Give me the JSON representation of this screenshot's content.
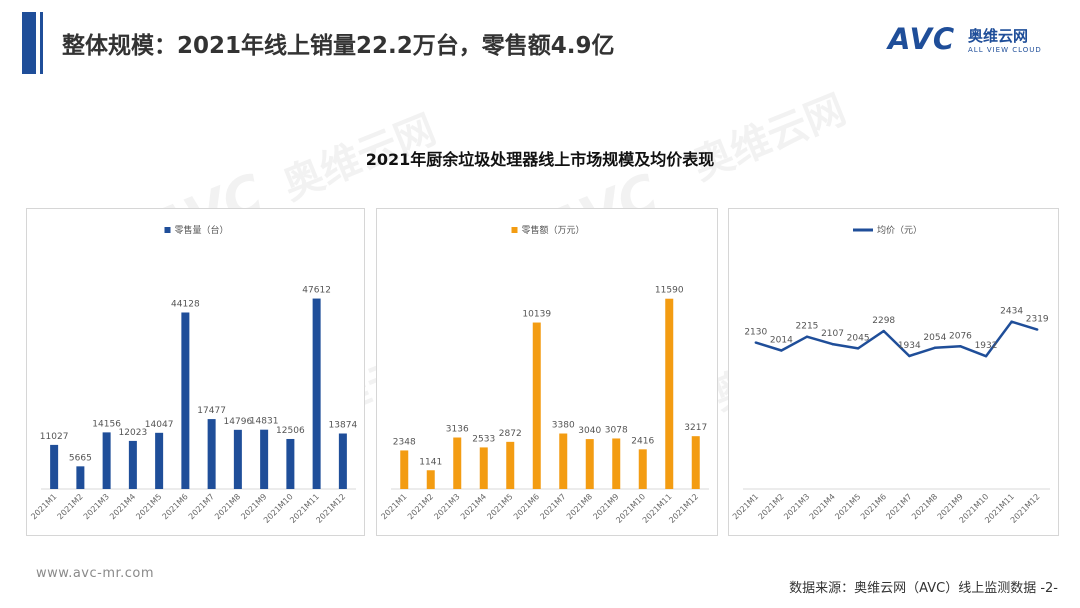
{
  "header": {
    "title": "整体规模：2021年线上销量22.2万台，零售额4.9亿"
  },
  "logo": {
    "mark": "AVC",
    "cn": "奥维云网",
    "en": "ALL VIEW CLOUD"
  },
  "section_title": "2021年厨余垃圾处理器线上市场规模及均价表现",
  "footer": {
    "url": "www.avc-mr.com",
    "source": "数据来源：奥维云网（AVC）线上监测数据 -2-"
  },
  "colors": {
    "brand_blue": "#1f4e99",
    "volume_bar": "#1f4e99",
    "revenue_bar": "#f39c12",
    "price_line": "#1f4e99"
  },
  "chart_data": [
    {
      "type": "bar",
      "title": "",
      "categories": [
        "2021M1",
        "2021M2",
        "2021M3",
        "2021M4",
        "2021M5",
        "2021M6",
        "2021M7",
        "2021M8",
        "2021M9",
        "2021M10",
        "2021M11",
        "2021M12"
      ],
      "series": [
        {
          "name": "零售量（台）",
          "values": [
            11027,
            5665,
            14156,
            12023,
            14047,
            44128,
            17477,
            14796,
            14831,
            12506,
            47612,
            13874
          ]
        }
      ],
      "ylim": [
        0,
        55000
      ],
      "grid": false,
      "legend": "top",
      "data_labels": true
    },
    {
      "type": "bar",
      "title": "",
      "categories": [
        "2021M1",
        "2021M2",
        "2021M3",
        "2021M4",
        "2021M5",
        "2021M6",
        "2021M7",
        "2021M8",
        "2021M9",
        "2021M10",
        "2021M11",
        "2021M12"
      ],
      "series": [
        {
          "name": "零售额（万元）",
          "values": [
            2348,
            1141,
            3136,
            2533,
            2872,
            10139,
            3380,
            3040,
            3078,
            2416,
            11590,
            3217
          ]
        }
      ],
      "ylim": [
        0,
        13400
      ],
      "grid": false,
      "legend": "top",
      "data_labels": true
    },
    {
      "type": "line",
      "title": "",
      "categories": [
        "2021M1",
        "2021M2",
        "2021M3",
        "2021M4",
        "2021M5",
        "2021M6",
        "2021M7",
        "2021M8",
        "2021M9",
        "2021M10",
        "2021M11",
        "2021M12"
      ],
      "series": [
        {
          "name": "均价（元）",
          "values": [
            2130,
            2014,
            2215,
            2107,
            2045,
            2298,
            1934,
            2054,
            2076,
            1932,
            2434,
            2319
          ]
        }
      ],
      "ylim": [
        0,
        3200
      ],
      "grid": false,
      "legend": "top",
      "data_labels": true
    }
  ]
}
